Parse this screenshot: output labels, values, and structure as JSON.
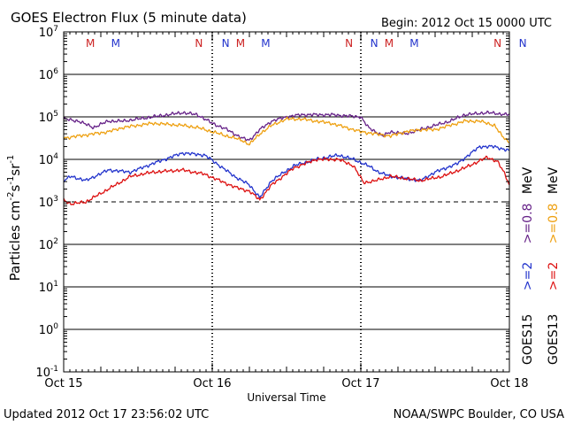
{
  "chart_data": {
    "type": "line",
    "title": "GOES Electron Flux (5 minute data)",
    "begin_label": "Begin: 2012 Oct 15 0000 UTC",
    "xlabel": "Universal Time",
    "ylabel_parts": [
      "Particles cm",
      "-2",
      "s",
      "-1",
      "sr",
      "-1"
    ],
    "x_range_days": [
      0,
      3
    ],
    "x_ticks": [
      {
        "day": 0,
        "label": "Oct 15"
      },
      {
        "day": 1,
        "label": "Oct 16"
      },
      {
        "day": 2,
        "label": "Oct 17"
      },
      {
        "day": 3,
        "label": "Oct 18"
      }
    ],
    "y_log_range": [
      -1,
      7
    ],
    "y_ticks": [
      {
        "exp": 7,
        "base": "10",
        "sup": "7"
      },
      {
        "exp": 6,
        "base": "10",
        "sup": "6"
      },
      {
        "exp": 5,
        "base": "10",
        "sup": "5"
      },
      {
        "exp": 4,
        "base": "10",
        "sup": "4"
      },
      {
        "exp": 3,
        "base": "10",
        "sup": "3"
      },
      {
        "exp": 2,
        "base": "10",
        "sup": "2"
      },
      {
        "exp": 1,
        "base": "10",
        "sup": "1"
      },
      {
        "exp": 0,
        "base": "10",
        "sup": "0"
      },
      {
        "exp": -1,
        "base": "10",
        "sup": "-1"
      }
    ],
    "threshold_exp": 3,
    "noon_markers": [
      {
        "day": 0.18,
        "label": "M",
        "color": "#cc2222"
      },
      {
        "day": 0.35,
        "label": "M",
        "color": "#2233cc"
      },
      {
        "day": 0.91,
        "label": "N",
        "color": "#cc2222"
      },
      {
        "day": 1.09,
        "label": "N",
        "color": "#2233cc"
      },
      {
        "day": 1.19,
        "label": "M",
        "color": "#cc2222"
      },
      {
        "day": 1.36,
        "label": "M",
        "color": "#2233cc"
      },
      {
        "day": 1.92,
        "label": "N",
        "color": "#cc2222"
      },
      {
        "day": 2.09,
        "label": "N",
        "color": "#2233cc"
      },
      {
        "day": 2.19,
        "label": "M",
        "color": "#cc2222"
      },
      {
        "day": 2.36,
        "label": "M",
        "color": "#2233cc"
      },
      {
        "day": 2.92,
        "label": "N",
        "color": "#cc2222"
      },
      {
        "day": 3.09,
        "label": "N",
        "color": "#2233cc"
      }
    ],
    "legend": {
      "sat_left": "GOES15",
      "sat_right": "GOES13",
      "entries": [
        {
          "label": ">=2",
          "color": "#2233cc",
          "col": "GOES15",
          "row": "low"
        },
        {
          "label": ">=0.8",
          "color": "#662288",
          "col": "GOES15",
          "row": "high"
        },
        {
          "label": ">=2",
          "color": "#dd1111",
          "col": "GOES13",
          "row": "low"
        },
        {
          "label": ">=0.8",
          "color": "#eea010",
          "col": "GOES13",
          "row": "high"
        }
      ],
      "unit": "MeV"
    },
    "series": [
      {
        "name": "GOES15 >=0.8 MeV",
        "color": "#662288",
        "x": [
          0,
          0.1,
          0.2,
          0.3,
          0.4,
          0.6,
          0.8,
          0.9,
          1.0,
          1.1,
          1.2,
          1.25,
          1.32,
          1.4,
          1.5,
          1.6,
          1.8,
          2.0,
          2.05,
          2.15,
          2.2,
          2.3,
          2.4,
          2.5,
          2.6,
          2.7,
          2.85,
          3.0
        ],
        "log": [
          4.95,
          4.9,
          4.75,
          4.9,
          4.9,
          5.0,
          5.1,
          5.05,
          4.85,
          4.7,
          4.5,
          4.45,
          4.7,
          4.9,
          5.0,
          5.05,
          5.05,
          5.0,
          4.75,
          4.55,
          4.65,
          4.6,
          4.7,
          4.8,
          4.9,
          5.05,
          5.1,
          5.05
        ]
      },
      {
        "name": "GOES13 >=0.8 MeV",
        "color": "#eea010",
        "x": [
          0,
          0.1,
          0.2,
          0.3,
          0.4,
          0.6,
          0.8,
          0.9,
          1.0,
          1.1,
          1.2,
          1.25,
          1.32,
          1.4,
          1.5,
          1.6,
          1.8,
          1.9,
          2.0,
          2.1,
          2.2,
          2.3,
          2.4,
          2.5,
          2.6,
          2.7,
          2.8,
          2.9,
          2.95,
          3.0
        ],
        "log": [
          4.5,
          4.55,
          4.6,
          4.65,
          4.75,
          4.85,
          4.8,
          4.75,
          4.65,
          4.55,
          4.45,
          4.35,
          4.6,
          4.8,
          4.95,
          4.95,
          4.85,
          4.75,
          4.65,
          4.6,
          4.55,
          4.65,
          4.7,
          4.7,
          4.8,
          4.9,
          4.9,
          4.8,
          4.55,
          4.4
        ]
      },
      {
        "name": "GOES15 >=2 MeV",
        "color": "#2233cc",
        "x": [
          0,
          0.05,
          0.15,
          0.3,
          0.45,
          0.6,
          0.8,
          0.95,
          1.05,
          1.15,
          1.25,
          1.32,
          1.4,
          1.55,
          1.7,
          1.85,
          1.95,
          2.05,
          2.12,
          2.2,
          2.3,
          2.4,
          2.5,
          2.65,
          2.8,
          2.9,
          3.0
        ],
        "log": [
          3.5,
          3.6,
          3.5,
          3.75,
          3.7,
          3.9,
          4.15,
          4.1,
          3.85,
          3.6,
          3.4,
          3.1,
          3.5,
          3.85,
          4.0,
          4.1,
          4.0,
          3.85,
          3.7,
          3.6,
          3.55,
          3.5,
          3.7,
          3.9,
          4.3,
          4.3,
          4.2
        ]
      },
      {
        "name": "GOES13 >=2 MeV",
        "color": "#dd1111",
        "x": [
          0,
          0.05,
          0.15,
          0.3,
          0.45,
          0.6,
          0.8,
          0.95,
          1.05,
          1.15,
          1.25,
          1.32,
          1.4,
          1.55,
          1.7,
          1.85,
          1.95,
          2.02,
          2.1,
          2.2,
          2.3,
          2.4,
          2.55,
          2.7,
          2.85,
          2.92,
          2.97,
          3.0
        ],
        "log": [
          3.05,
          2.95,
          3.0,
          3.3,
          3.6,
          3.7,
          3.75,
          3.65,
          3.5,
          3.35,
          3.25,
          3.05,
          3.4,
          3.8,
          4.0,
          4.0,
          3.85,
          3.45,
          3.5,
          3.6,
          3.55,
          3.5,
          3.6,
          3.8,
          4.05,
          3.95,
          3.65,
          3.4
        ]
      }
    ]
  },
  "footer": {
    "updated": "Updated 2012 Oct 17 23:56:02 UTC",
    "source": "NOAA/SWPC Boulder, CO USA"
  }
}
